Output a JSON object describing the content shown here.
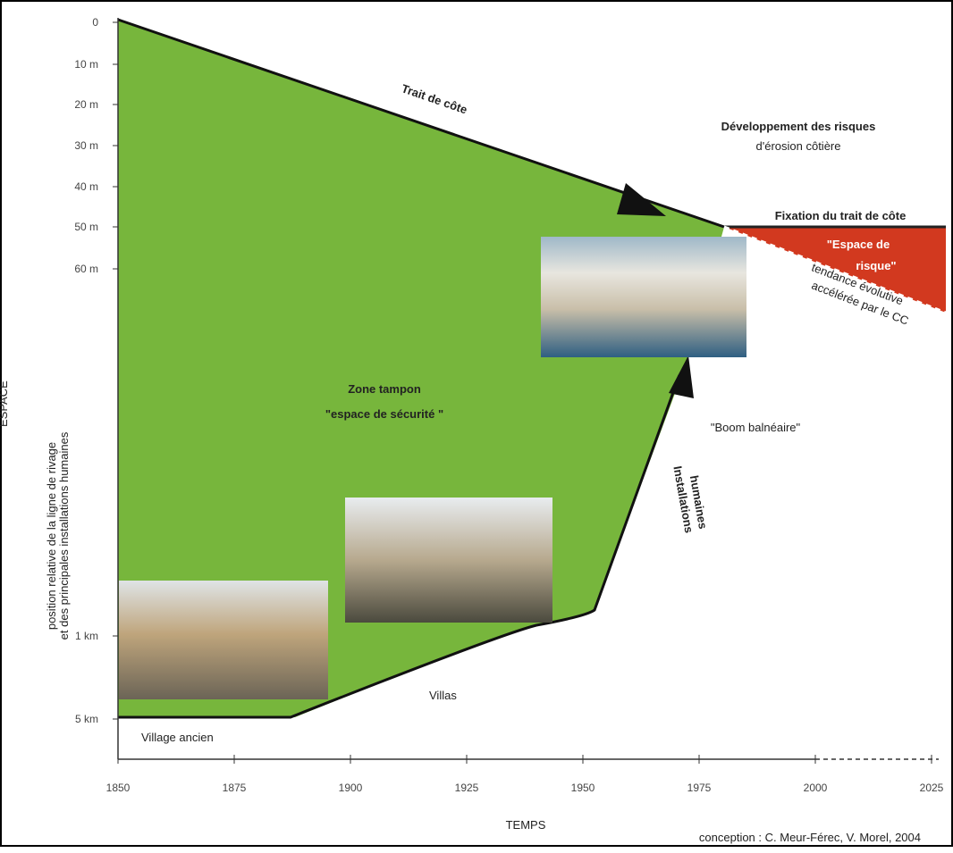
{
  "axes": {
    "y_title": "ESPACE",
    "y_subtitle": [
      "position relative de la ligne de rivage",
      "et des principales installations humaines"
    ],
    "y_ticks": [
      "0",
      "10 m",
      "20 m",
      "30 m",
      "40 m",
      "50 m",
      "60 m",
      "1 km",
      "5 km"
    ],
    "x_title": "TEMPS",
    "x_ticks": [
      "1850",
      "1875",
      "1900",
      "1925",
      "1950",
      "1975",
      "2000",
      "2025"
    ]
  },
  "labels": {
    "coastline": "Trait de côte",
    "risk_development": [
      "Développement des risques",
      "d'érosion côtière"
    ],
    "fixation": "Fixation du trait de côte",
    "risk_space": [
      "\"Espace de",
      "risque\""
    ],
    "trend": [
      "tendance évolutive",
      "accélérée par le CC"
    ],
    "buffer_zone": [
      "Zone tampon",
      "\"espace de sécurité \""
    ],
    "boom": "\"Boom balnéaire\"",
    "installations": [
      "Installations",
      "humaines"
    ],
    "villas": "Villas",
    "old_village": "Village ancien"
  },
  "credit": "conception : C. Meur-Férec, V. Morel, 2004"
}
